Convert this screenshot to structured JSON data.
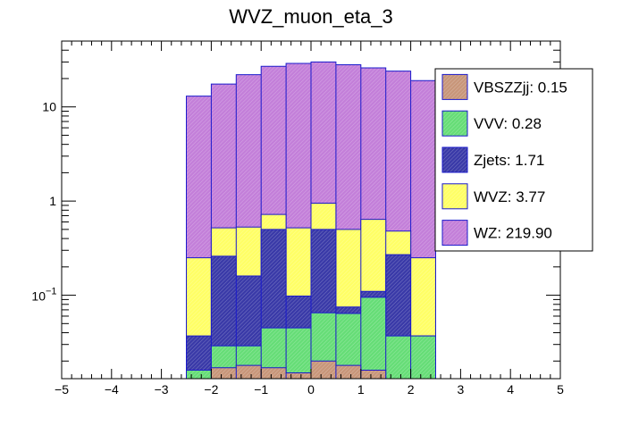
{
  "chart_data": {
    "type": "area",
    "title": "WVZ_muon_eta_3",
    "xlabel": "",
    "ylabel": "",
    "xlim": [
      -5,
      5
    ],
    "ylim": [
      0.013,
      50
    ],
    "yscale": "log",
    "stacked": true,
    "x_ticks": [
      "−5",
      "−4",
      "−3",
      "−2",
      "−1",
      "0",
      "1",
      "2",
      "3",
      "4",
      "5"
    ],
    "y_ticks": [
      {
        "value": 0.1,
        "base": "10",
        "exp": "−1"
      },
      {
        "value": 1,
        "base": "1",
        "exp": ""
      },
      {
        "value": 10,
        "base": "10",
        "exp": ""
      }
    ],
    "bin_edges": [
      -2.5,
      -2.0,
      -1.5,
      -1.0,
      -0.5,
      0.0,
      0.5,
      1.0,
      1.5,
      2.0,
      2.5
    ],
    "series": [
      {
        "name": "WZ",
        "legend": "WZ: 219.90",
        "color": "#c37fd9",
        "cumulative": [
          13.0,
          17.5,
          22.0,
          27.0,
          29.0,
          30.0,
          28.0,
          26.0,
          24.0,
          19.0
        ]
      },
      {
        "name": "WVZ",
        "legend": "WVZ: 3.77",
        "color": "#ffff66",
        "cumulative": [
          0.25,
          0.52,
          0.53,
          0.72,
          0.52,
          0.95,
          0.5,
          0.64,
          0.48,
          0.25
        ]
      },
      {
        "name": "Zjets",
        "legend": "Zjets: 1.71",
        "color": "#3a3aa8",
        "cumulative": [
          0.037,
          0.26,
          0.16,
          0.5,
          0.098,
          0.5,
          0.075,
          0.11,
          0.27,
          0.037
        ]
      },
      {
        "name": "VVV",
        "legend": "VVV: 0.28",
        "color": "#66dd77",
        "cumulative": [
          0.016,
          0.029,
          0.029,
          0.045,
          0.045,
          0.065,
          0.064,
          0.095,
          0.037,
          0.037
        ]
      },
      {
        "name": "VBSZZjj",
        "legend": "VBSZZjj: 0.15",
        "color": "#c8967a",
        "cumulative": [
          0.0,
          0.017,
          0.018,
          0.017,
          0.015,
          0.02,
          0.018,
          0.016,
          0.0,
          0.0
        ]
      }
    ],
    "legend_order": [
      "VBSZZjj",
      "VVV",
      "Zjets",
      "WVZ",
      "WZ"
    ],
    "legend_position": "top-right",
    "grid": false
  }
}
